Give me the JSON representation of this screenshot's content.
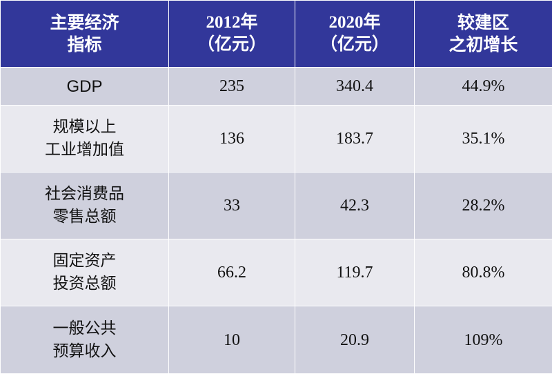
{
  "header": {
    "col1": [
      "主要经济",
      "指标"
    ],
    "col2": [
      "2012年",
      "（亿元）"
    ],
    "col3": [
      "2020年",
      "（亿元）"
    ],
    "col4": [
      "较建区",
      "之初增长"
    ]
  },
  "rows": [
    {
      "label": [
        "GDP"
      ],
      "y2012": "235",
      "y2020": "340.4",
      "growth": "44.9%"
    },
    {
      "label": [
        "规模以上",
        "工业增加值"
      ],
      "y2012": "136",
      "y2020": "183.7",
      "growth": "35.1%"
    },
    {
      "label": [
        "社会消费品",
        "零售总额"
      ],
      "y2012": "33",
      "y2020": "42.3",
      "growth": "28.2%"
    },
    {
      "label": [
        "固定资产",
        "投资总额"
      ],
      "y2012": "66.2",
      "y2020": "119.7",
      "growth": "80.8%"
    },
    {
      "label": [
        "一般公共",
        "预算收入"
      ],
      "y2012": "10",
      "y2020": "20.9",
      "growth": "109%"
    }
  ],
  "colors": {
    "header_bg": "#32379a",
    "row_dark": "#cfd0dd",
    "row_light": "#e9e9ef"
  }
}
